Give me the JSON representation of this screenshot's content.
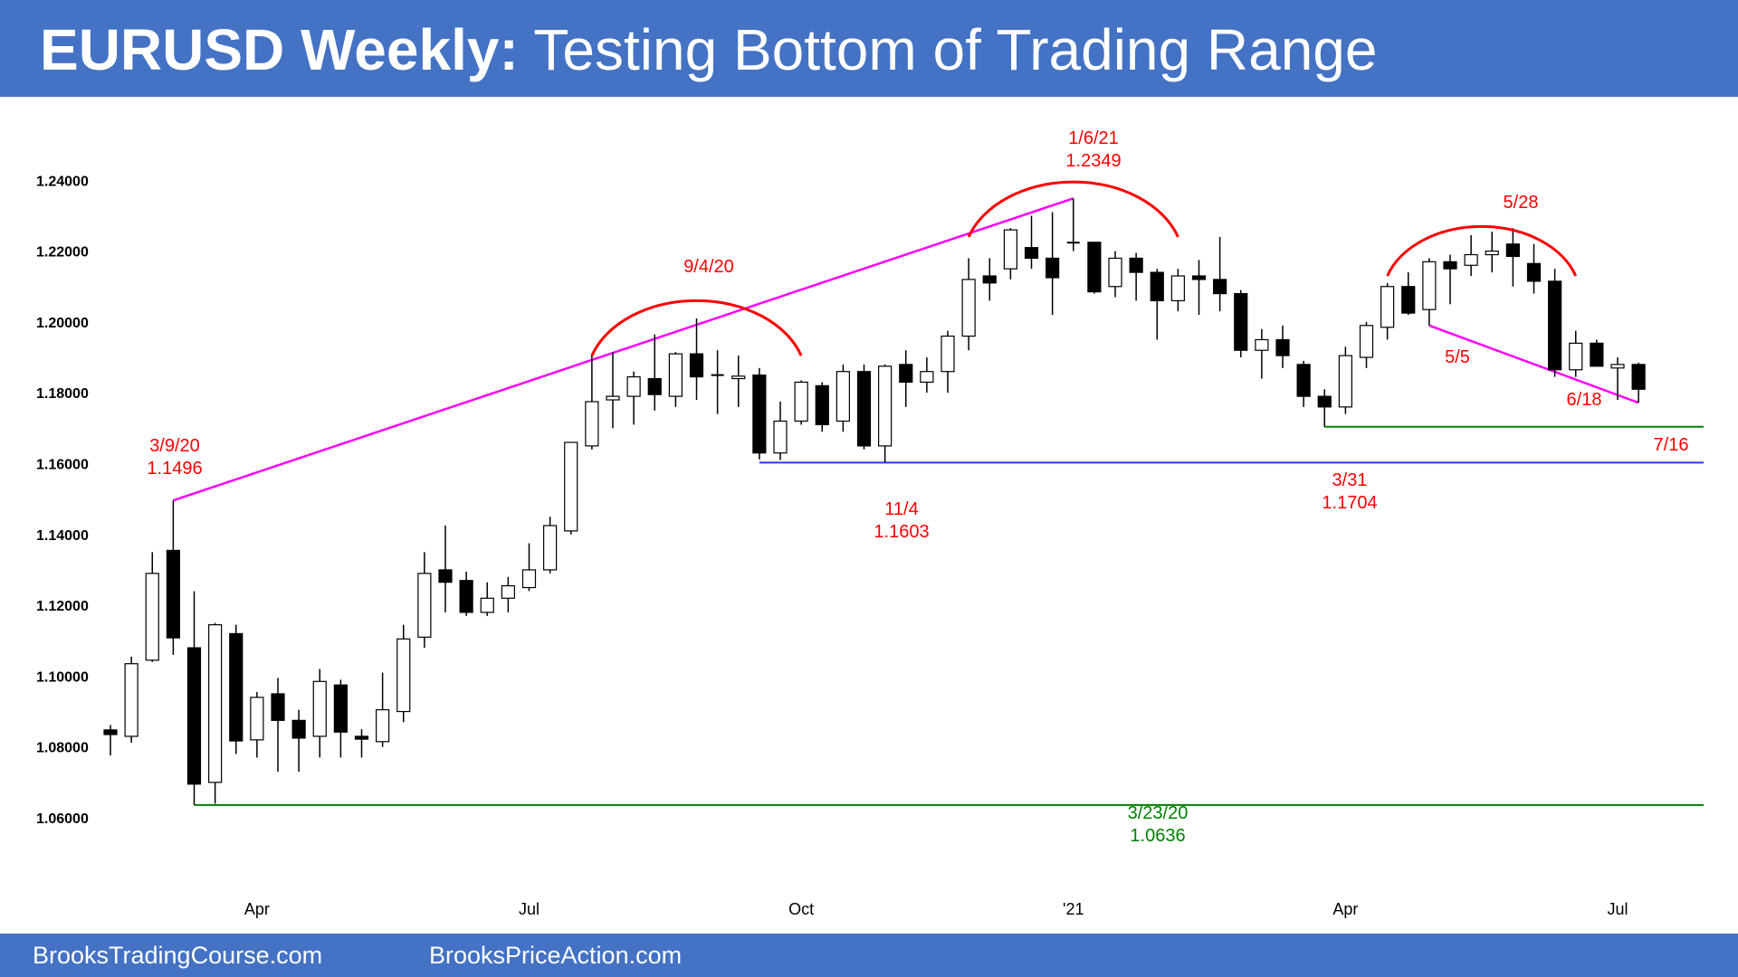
{
  "header": {
    "title_bold": "EURUSD Weekly:",
    "title_rest": " Testing Bottom of Trading Range"
  },
  "footer": {
    "left": "BrooksTradingCourse.com",
    "right": "BrooksPriceAction.com"
  },
  "colors": {
    "banner": "#4472c4",
    "up": "#ffffff",
    "down": "#000000",
    "magenta": "#ff00ff",
    "red": "#ff0000",
    "green": "#008000",
    "blue": "#3333ff"
  },
  "chart_data": {
    "type": "candlestick",
    "title": "EURUSD Weekly: Testing Bottom of Trading Range",
    "ylim": [
      1.05,
      1.26
    ],
    "y_ticks": [
      "1.06000",
      "1.08000",
      "1.10000",
      "1.12000",
      "1.14000",
      "1.16000",
      "1.18000",
      "1.20000",
      "1.22000",
      "1.24000"
    ],
    "x_ticks": [
      {
        "label": "Apr",
        "week": 7
      },
      {
        "label": "Jul",
        "week": 20
      },
      {
        "label": "Oct",
        "week": 33
      },
      {
        "label": "'21",
        "week": 46
      },
      {
        "label": "Apr",
        "week": 59
      },
      {
        "label": "Jul",
        "week": 72
      }
    ],
    "grid": false,
    "candles": [
      [
        1.0848,
        1.0862,
        1.0776,
        1.0835
      ],
      [
        1.083,
        1.1055,
        1.0812,
        1.1035
      ],
      [
        1.1045,
        1.135,
        1.104,
        1.129
      ],
      [
        1.1355,
        1.1496,
        1.106,
        1.1108
      ],
      [
        1.108,
        1.124,
        1.0636,
        1.0695
      ],
      [
        1.07,
        1.115,
        1.064,
        1.1145
      ],
      [
        1.112,
        1.1145,
        1.078,
        1.0817
      ],
      [
        1.082,
        1.0955,
        1.077,
        1.094
      ],
      [
        1.095,
        1.0995,
        1.073,
        1.0875
      ],
      [
        1.0875,
        1.0905,
        1.073,
        1.0825
      ],
      [
        1.083,
        1.102,
        1.077,
        1.0985
      ],
      [
        1.0975,
        1.099,
        1.077,
        1.0842
      ],
      [
        1.083,
        1.085,
        1.077,
        1.0822
      ],
      [
        1.0815,
        1.101,
        1.08,
        1.0905
      ],
      [
        1.09,
        1.1145,
        1.087,
        1.1105
      ],
      [
        1.111,
        1.135,
        1.108,
        1.129
      ],
      [
        1.13,
        1.1425,
        1.118,
        1.1265
      ],
      [
        1.127,
        1.1295,
        1.117,
        1.118
      ],
      [
        1.118,
        1.1265,
        1.117,
        1.122
      ],
      [
        1.122,
        1.128,
        1.118,
        1.1255
      ],
      [
        1.125,
        1.1375,
        1.124,
        1.13
      ],
      [
        1.13,
        1.145,
        1.129,
        1.1425
      ],
      [
        1.141,
        1.166,
        1.14,
        1.166
      ],
      [
        1.165,
        1.191,
        1.164,
        1.1775
      ],
      [
        1.178,
        1.1915,
        1.17,
        1.179
      ],
      [
        1.179,
        1.186,
        1.171,
        1.1845
      ],
      [
        1.184,
        1.1965,
        1.175,
        1.1795
      ],
      [
        1.179,
        1.1915,
        1.176,
        1.191
      ],
      [
        1.191,
        1.201,
        1.178,
        1.1845
      ],
      [
        1.185,
        1.192,
        1.174,
        1.185
      ],
      [
        1.184,
        1.1905,
        1.176,
        1.1847
      ],
      [
        1.185,
        1.187,
        1.1612,
        1.163
      ],
      [
        1.163,
        1.1775,
        1.161,
        1.172
      ],
      [
        1.172,
        1.1835,
        1.171,
        1.183
      ],
      [
        1.182,
        1.183,
        1.169,
        1.171
      ],
      [
        1.172,
        1.188,
        1.169,
        1.186
      ],
      [
        1.186,
        1.188,
        1.164,
        1.165
      ],
      [
        1.165,
        1.188,
        1.1603,
        1.1875
      ],
      [
        1.188,
        1.192,
        1.176,
        1.183
      ],
      [
        1.183,
        1.19,
        1.18,
        1.186
      ],
      [
        1.186,
        1.1975,
        1.18,
        1.196
      ],
      [
        1.196,
        1.218,
        1.192,
        1.212
      ],
      [
        1.213,
        1.218,
        1.206,
        1.211
      ],
      [
        1.215,
        1.2265,
        1.212,
        1.226
      ],
      [
        1.221,
        1.23,
        1.215,
        1.218
      ],
      [
        1.218,
        1.231,
        1.202,
        1.2125
      ],
      [
        1.2225,
        1.2349,
        1.22,
        1.2224
      ],
      [
        1.2225,
        1.2225,
        1.208,
        1.2085
      ],
      [
        1.21,
        1.22,
        1.207,
        1.218
      ],
      [
        1.218,
        1.2195,
        1.206,
        1.214
      ],
      [
        1.214,
        1.215,
        1.195,
        1.206
      ],
      [
        1.206,
        1.215,
        1.203,
        1.213
      ],
      [
        1.213,
        1.2175,
        1.202,
        1.212
      ],
      [
        1.212,
        1.224,
        1.203,
        1.208
      ],
      [
        1.208,
        1.209,
        1.19,
        1.192
      ],
      [
        1.192,
        1.198,
        1.184,
        1.195
      ],
      [
        1.195,
        1.199,
        1.187,
        1.1905
      ],
      [
        1.188,
        1.189,
        1.176,
        1.179
      ],
      [
        1.179,
        1.181,
        1.1704,
        1.176
      ],
      [
        1.176,
        1.193,
        1.174,
        1.1905
      ],
      [
        1.19,
        1.2,
        1.187,
        1.199
      ],
      [
        1.1985,
        1.211,
        1.195,
        1.21
      ],
      [
        1.21,
        1.214,
        1.202,
        1.2025
      ],
      [
        1.2035,
        1.218,
        1.199,
        1.217
      ],
      [
        1.217,
        1.219,
        1.205,
        1.215
      ],
      [
        1.216,
        1.2245,
        1.213,
        1.219
      ],
      [
        1.219,
        1.2255,
        1.214,
        1.22
      ],
      [
        1.222,
        1.2265,
        1.21,
        1.2185
      ],
      [
        1.2165,
        1.222,
        1.208,
        1.2115
      ],
      [
        1.2115,
        1.215,
        1.1845,
        1.1865
      ],
      [
        1.1865,
        1.1975,
        1.1845,
        1.194
      ],
      [
        1.194,
        1.195,
        1.188,
        1.1875
      ],
      [
        1.187,
        1.19,
        1.178,
        1.188
      ],
      [
        1.188,
        1.1885,
        1.1772,
        1.181
      ]
    ],
    "annotations": [
      {
        "date": "3/9/20",
        "price": "1.1496",
        "color": "red"
      },
      {
        "date": "9/4/20",
        "color": "red"
      },
      {
        "date": "1/6/21",
        "price": "1.2349",
        "color": "red"
      },
      {
        "date": "11/4",
        "price": "1.1603",
        "color": "red"
      },
      {
        "date": "3/31",
        "price": "1.1704",
        "color": "red"
      },
      {
        "date": "5/28",
        "color": "red"
      },
      {
        "date": "5/5",
        "color": "red"
      },
      {
        "date": "6/18",
        "color": "red"
      },
      {
        "date": "7/16",
        "color": "red"
      },
      {
        "date": "3/23/20",
        "price": "1.0636",
        "color": "green"
      }
    ],
    "lines": [
      {
        "type": "trendline",
        "color": "magenta",
        "from_week": 3,
        "from_price": 1.1496,
        "to_week": 46,
        "to_price": 1.2349
      },
      {
        "type": "trendline",
        "color": "magenta",
        "from_week": 63,
        "from_price": 1.199,
        "to_week": 73,
        "to_price": 1.1772
      },
      {
        "type": "support",
        "color": "green",
        "price": 1.0636,
        "from_week": 4
      },
      {
        "type": "support",
        "color": "blue",
        "price": 1.1603,
        "from_week": 31
      },
      {
        "type": "support",
        "color": "green",
        "price": 1.1704,
        "from_week": 58
      }
    ],
    "arcs": [
      {
        "label": "9/4/20",
        "from_week": 23,
        "to_week": 33,
        "base_price": 1.1905
      },
      {
        "label": "1/6/21",
        "from_week": 41,
        "to_week": 51,
        "base_price": 1.224
      },
      {
        "label": "5/28",
        "from_week": 61,
        "to_week": 70,
        "base_price": 1.213
      }
    ]
  }
}
